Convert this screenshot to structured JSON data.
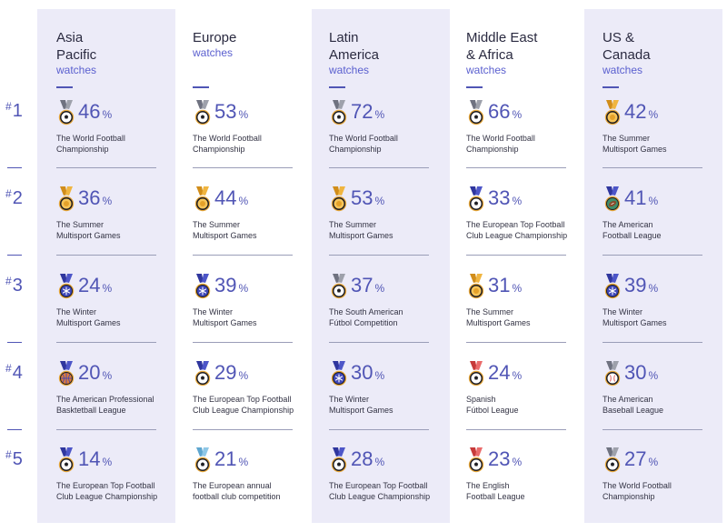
{
  "colors": {
    "accent": "#5055b5",
    "shade": "#ecebf8",
    "text": "#333344",
    "gold": "#e4a12a",
    "silver_ribbon": "#8a8d96",
    "blue_ribbon": "#3f47b8",
    "red_ribbon": "#d94b4b"
  },
  "ranks": [
    {
      "hash": "#",
      "num": "1"
    },
    {
      "hash": "#",
      "num": "2"
    },
    {
      "hash": "#",
      "num": "3"
    },
    {
      "hash": "#",
      "num": "4"
    },
    {
      "hash": "#",
      "num": "5"
    }
  ],
  "percent_sign": "%",
  "chart_data": {
    "type": "table",
    "title": "",
    "columns": [
      {
        "region": "Asia\nPacific",
        "subtitle": "watches",
        "entries": [
          {
            "rank": 1,
            "value": 46,
            "event": "The World Football\nChampionship",
            "icon": "soccer-medal-icon",
            "ribbon": "silver"
          },
          {
            "rank": 2,
            "value": 36,
            "event": "The Summer\nMultisport Games",
            "icon": "gold-medal-icon",
            "ribbon": "gold"
          },
          {
            "rank": 3,
            "value": 24,
            "event": "The Winter\nMultisport Games",
            "icon": "snowflake-medal-icon",
            "ribbon": "blue"
          },
          {
            "rank": 4,
            "value": 20,
            "event": "The American Professional\nBasktetball League",
            "icon": "basketball-medal-icon",
            "ribbon": "blue"
          },
          {
            "rank": 5,
            "value": 14,
            "event": "The European Top Football\nClub League Championship",
            "icon": "soccer-medal-icon",
            "ribbon": "blue"
          }
        ]
      },
      {
        "region": "Europe",
        "subtitle": "watches",
        "entries": [
          {
            "rank": 1,
            "value": 53,
            "event": "The World Football\nChampionship",
            "icon": "soccer-medal-icon",
            "ribbon": "silver"
          },
          {
            "rank": 2,
            "value": 44,
            "event": "The Summer\nMultisport Games",
            "icon": "gold-medal-icon",
            "ribbon": "gold"
          },
          {
            "rank": 3,
            "value": 39,
            "event": "The Winter\nMultisport Games",
            "icon": "snowflake-medal-icon",
            "ribbon": "blue"
          },
          {
            "rank": 4,
            "value": 29,
            "event": "The European Top Football\nClub League Championship",
            "icon": "soccer-medal-icon",
            "ribbon": "blue"
          },
          {
            "rank": 5,
            "value": 21,
            "event": "The European annual\nfootball club competition",
            "icon": "soccer-medal-icon",
            "ribbon": "lightblue"
          }
        ]
      },
      {
        "region": "Latin\nAmerica",
        "subtitle": "watches",
        "entries": [
          {
            "rank": 1,
            "value": 72,
            "event": "The World Football\nChampionship",
            "icon": "soccer-medal-icon",
            "ribbon": "silver"
          },
          {
            "rank": 2,
            "value": 53,
            "event": "The Summer\nMultisport Games",
            "icon": "gold-medal-icon",
            "ribbon": "gold"
          },
          {
            "rank": 3,
            "value": 37,
            "event": "The South American\nFútbol Competition",
            "icon": "soccer-medal-icon",
            "ribbon": "silver"
          },
          {
            "rank": 4,
            "value": 30,
            "event": "The Winter\nMultisport Games",
            "icon": "snowflake-medal-icon",
            "ribbon": "blue"
          },
          {
            "rank": 5,
            "value": 28,
            "event": "The European Top Football\nClub League Championship",
            "icon": "soccer-medal-icon",
            "ribbon": "blue"
          }
        ]
      },
      {
        "region": "Middle East\n& Africa",
        "subtitle": "watches",
        "entries": [
          {
            "rank": 1,
            "value": 66,
            "event": "The World Football\nChampionship",
            "icon": "soccer-medal-icon",
            "ribbon": "silver"
          },
          {
            "rank": 2,
            "value": 33,
            "event": "The European Top Football\nClub League Championship",
            "icon": "soccer-medal-icon",
            "ribbon": "blue"
          },
          {
            "rank": 3,
            "value": 31,
            "event": "The Summer\nMultisport Games",
            "icon": "gold-medal-icon",
            "ribbon": "gold"
          },
          {
            "rank": 4,
            "value": 24,
            "event": "Spanish\nFútbol League",
            "icon": "soccer-medal-icon",
            "ribbon": "red"
          },
          {
            "rank": 5,
            "value": 23,
            "event": "The English\nFootball League",
            "icon": "soccer-medal-icon",
            "ribbon": "red"
          }
        ]
      },
      {
        "region": "US &\nCanada",
        "subtitle": "watches",
        "entries": [
          {
            "rank": 1,
            "value": 42,
            "event": "The Summer\nMultisport Games",
            "icon": "gold-medal-icon",
            "ribbon": "gold"
          },
          {
            "rank": 2,
            "value": 41,
            "event": "The American\nFootball League",
            "icon": "american-football-medal-icon",
            "ribbon": "blue"
          },
          {
            "rank": 3,
            "value": 39,
            "event": "The Winter\nMultisport Games",
            "icon": "snowflake-medal-icon",
            "ribbon": "blue"
          },
          {
            "rank": 4,
            "value": 30,
            "event": "The American\nBaseball League",
            "icon": "baseball-medal-icon",
            "ribbon": "silver"
          },
          {
            "rank": 5,
            "value": 27,
            "event": "The World Football\nChampionship",
            "icon": "soccer-medal-icon",
            "ribbon": "silver"
          }
        ]
      }
    ]
  }
}
